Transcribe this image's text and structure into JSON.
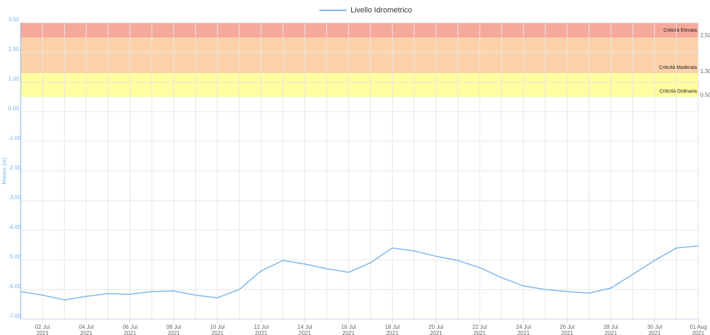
{
  "chart_data": {
    "type": "line",
    "y_label": "Meters (m)",
    "x": [
      "2021-07-01",
      "2021-07-02",
      "2021-07-03",
      "2021-07-04",
      "2021-07-05",
      "2021-07-06",
      "2021-07-07",
      "2021-07-08",
      "2021-07-09",
      "2021-07-10",
      "2021-07-11",
      "2021-07-12",
      "2021-07-13",
      "2021-07-14",
      "2021-07-15",
      "2021-07-16",
      "2021-07-17",
      "2021-07-18",
      "2021-07-19",
      "2021-07-20",
      "2021-07-21",
      "2021-07-22",
      "2021-07-23",
      "2021-07-24",
      "2021-07-25",
      "2021-07-26",
      "2021-07-27",
      "2021-07-28",
      "2021-07-29",
      "2021-07-30",
      "2021-07-31",
      "2021-08-01"
    ],
    "series": [
      {
        "name": "Livello Idrometrico",
        "color": "#7cb5ec",
        "values": [
          -6.07,
          -6.19,
          -6.35,
          -6.23,
          -6.14,
          -6.16,
          -6.07,
          -6.05,
          -6.19,
          -6.28,
          -6.0,
          -5.37,
          -5.02,
          -5.14,
          -5.3,
          -5.42,
          -5.1,
          -4.6,
          -4.7,
          -4.88,
          -5.02,
          -5.26,
          -5.6,
          -5.88,
          -6.0,
          -6.07,
          -6.12,
          -5.95,
          -5.49,
          -5.02,
          -4.6,
          -4.53
        ]
      }
    ],
    "xlim": [
      "2021-07-01",
      "2021-08-01"
    ],
    "xticks": [
      {
        "value": "2021-07-02",
        "label": [
          "02 Jul",
          "2021"
        ]
      },
      {
        "value": "2021-07-04",
        "label": [
          "04 Jul",
          "2021"
        ]
      },
      {
        "value": "2021-07-06",
        "label": [
          "06 Jul",
          "2021"
        ]
      },
      {
        "value": "2021-07-08",
        "label": [
          "08 Jul",
          "2021"
        ]
      },
      {
        "value": "2021-07-10",
        "label": [
          "10 Jul",
          "2021"
        ]
      },
      {
        "value": "2021-07-12",
        "label": [
          "12 Jul",
          "2021"
        ]
      },
      {
        "value": "2021-07-14",
        "label": [
          "14 Jul",
          "2021"
        ]
      },
      {
        "value": "2021-07-16",
        "label": [
          "16 Jul",
          "2021"
        ]
      },
      {
        "value": "2021-07-18",
        "label": [
          "18 Jul",
          "2021"
        ]
      },
      {
        "value": "2021-07-20",
        "label": [
          "20 Jul",
          "2021"
        ]
      },
      {
        "value": "2021-07-22",
        "label": [
          "22 Jul",
          "2021"
        ]
      },
      {
        "value": "2021-07-24",
        "label": [
          "24 Jul",
          "2021"
        ]
      },
      {
        "value": "2021-07-26",
        "label": [
          "26 Jul",
          "2021"
        ]
      },
      {
        "value": "2021-07-28",
        "label": [
          "28 Jul",
          "2021"
        ]
      },
      {
        "value": "2021-07-30",
        "label": [
          "30 Jul",
          "2021"
        ]
      },
      {
        "value": "2021-08-01",
        "label": [
          "01 Aug",
          "2021"
        ]
      }
    ],
    "ylim": [
      -7,
      3
    ],
    "yticks": [
      {
        "value": 3,
        "label": "3.00"
      },
      {
        "value": 2,
        "label": "2.00"
      },
      {
        "value": 1,
        "label": "1.00"
      },
      {
        "value": 0,
        "label": "0.00"
      },
      {
        "value": -1,
        "label": "-1.00"
      },
      {
        "value": -2,
        "label": "-2.00"
      },
      {
        "value": -3,
        "label": "-3.00"
      },
      {
        "value": -4,
        "label": "-4.00"
      },
      {
        "value": -5,
        "label": "-5.00"
      },
      {
        "value": -6,
        "label": "-6.00"
      },
      {
        "value": -7,
        "label": "-7.00"
      }
    ],
    "bands": [
      {
        "name": "Criticità  Elevata",
        "from": {
          "value": 2.5,
          "label": "2.50"
        },
        "to": 3,
        "color": "#f5a99a"
      },
      {
        "name": "Criticità  Moderata",
        "from": {
          "value": 1.3,
          "label": "1.30"
        },
        "to": 2.5,
        "color": "#fdd2aa"
      },
      {
        "name": "Criticità  Ordinaria",
        "from": {
          "value": 0.5,
          "label": "0.50"
        },
        "to": 1.3,
        "color": "#fffea0"
      }
    ],
    "grid": true
  }
}
